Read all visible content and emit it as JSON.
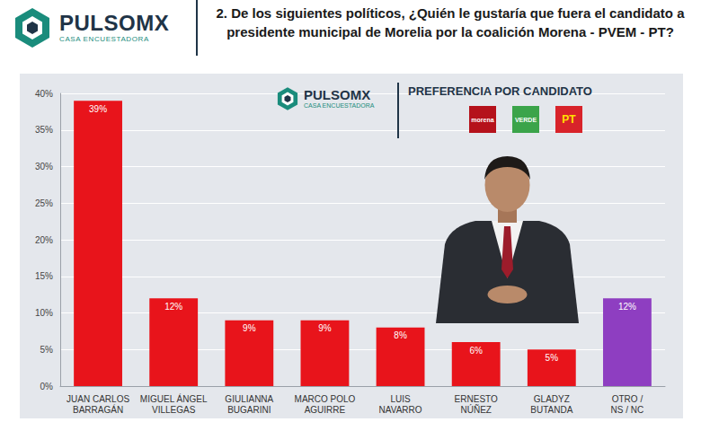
{
  "header": {
    "brand": "PULSOMX",
    "brand_subtitle": "CASA ENCUESTADORA",
    "question": "2. De los siguientes políticos, ¿Quién le gustaría que fuera el candidato a presidente municipal de Morelia por la coalición Morena - PVEM - PT?"
  },
  "panel": {
    "brand": "PULSOMX",
    "brand_subtitle": "CASA ENCUESTADORA",
    "parties": [
      "morena",
      "VERDE",
      "PT"
    ]
  },
  "chart_data": {
    "type": "bar",
    "title": "PREFERENCIA POR CANDIDATO",
    "categories": [
      "JUAN CARLOS BARRAGÁN",
      "MIGUEL ÁNGEL VILLEGAS",
      "GIULIANNA BUGARINI",
      "MARCO POLO AGUIRRE",
      "LUIS NAVARRO",
      "ERNESTO NÚÑEZ",
      "GLADYZ BUTANDA",
      "OTRO / NS / NC"
    ],
    "values": [
      39,
      12,
      9,
      9,
      8,
      6,
      5,
      12
    ],
    "value_labels": [
      "39%",
      "12%",
      "9%",
      "9%",
      "8%",
      "6%",
      "5%",
      "12%"
    ],
    "colors": [
      "#e8141b",
      "#e8141b",
      "#e8141b",
      "#e8141b",
      "#e8141b",
      "#e8141b",
      "#e8141b",
      "#8e3ec1"
    ],
    "ylim": [
      0,
      40
    ],
    "yticks": [
      {
        "value": 0,
        "label": "0%"
      },
      {
        "value": 5,
        "label": "5%"
      },
      {
        "value": 10,
        "label": "10%"
      },
      {
        "value": 15,
        "label": "15%"
      },
      {
        "value": 20,
        "label": "20%"
      },
      {
        "value": 25,
        "label": "25%"
      },
      {
        "value": 30,
        "label": "30%"
      },
      {
        "value": 35,
        "label": "35%"
      },
      {
        "value": 40,
        "label": "40%"
      }
    ],
    "grid": true,
    "data_labels": true
  }
}
